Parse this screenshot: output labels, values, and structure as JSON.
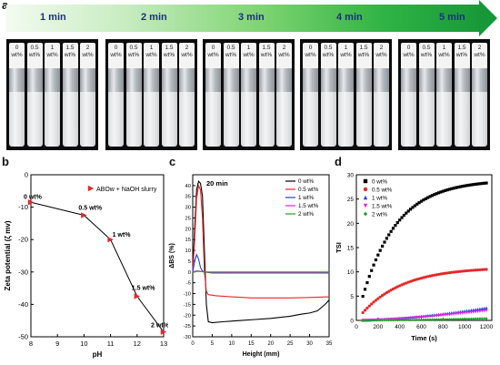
{
  "panel_labels": {
    "a": "a",
    "b": "b",
    "c": "c",
    "d": "d"
  },
  "timeline": {
    "labels": [
      "1 min",
      "2 min",
      "3 min",
      "4 min",
      "5 min"
    ]
  },
  "vial_labels": [
    [
      "0",
      "wt%"
    ],
    [
      "0.5",
      "wt%"
    ],
    [
      "1",
      "wt%"
    ],
    [
      "1.5",
      "wt%"
    ],
    [
      "2",
      "wt%"
    ]
  ],
  "chart_data": [
    {
      "type": "line",
      "panel": "b",
      "title": "",
      "xlabel": "pH",
      "ylabel": "Zeta potential (ζ mv)",
      "legend": [
        "ABOw + NaOH slurry"
      ],
      "legend_position": "top-right",
      "xlim": [
        8,
        13
      ],
      "ylim": [
        -50,
        0
      ],
      "xticks": [
        8,
        9,
        10,
        11,
        12,
        13
      ],
      "yticks": [
        0,
        -10,
        -20,
        -30,
        -40,
        -50
      ],
      "series": [
        {
          "name": "ABOw + NaOH slurry",
          "x": [
            8,
            10,
            11,
            12,
            13
          ],
          "y": [
            -8.5,
            -12.5,
            -20,
            -37.5,
            -48.5
          ]
        }
      ],
      "annotations": [
        "0 wt%",
        "0.5 wt%",
        "1 wt%",
        "1.5 wt%",
        "2 wt%"
      ],
      "color": "#e8262a"
    },
    {
      "type": "line",
      "panel": "c",
      "title": "20 min",
      "xlabel": "Height (mm)",
      "ylabel": "ΔBS (%)",
      "xlim": [
        0,
        35
      ],
      "ylim": [
        -30,
        45
      ],
      "xticks": [
        0,
        5,
        10,
        15,
        20,
        25,
        30,
        35
      ],
      "yticks": [
        40,
        35,
        30,
        25,
        20,
        15,
        10,
        5,
        0,
        -5,
        -10,
        -15,
        -20,
        -25,
        -30
      ],
      "legend_position": "top-right",
      "series": [
        {
          "name": "0 wt%",
          "color": "#000000",
          "x": [
            0,
            0.5,
            1,
            1.5,
            2,
            2.5,
            3,
            3.5,
            4,
            5,
            8,
            12,
            16,
            20,
            25,
            28,
            30,
            32,
            34,
            35
          ],
          "y": [
            0,
            20,
            38,
            42,
            41,
            35,
            10,
            -15,
            -23,
            -23.5,
            -23,
            -22.5,
            -22,
            -21.5,
            -20.5,
            -19.5,
            -19,
            -18,
            -15,
            -13
          ]
        },
        {
          "name": "0.5 wt%",
          "color": "#e8262a",
          "x": [
            0,
            0.5,
            1,
            1.5,
            2,
            2.5,
            3,
            3.5,
            4,
            6,
            10,
            15,
            20,
            25,
            30,
            35
          ],
          "y": [
            0,
            15,
            34,
            40,
            38,
            25,
            0,
            -9,
            -10.5,
            -11,
            -11.5,
            -12,
            -12,
            -12,
            -11.8,
            -11.5
          ]
        },
        {
          "name": "1 wt%",
          "color": "#2040e0",
          "x": [
            0,
            0.5,
            1,
            1.5,
            2,
            2.5,
            3,
            5,
            10,
            20,
            30,
            35
          ],
          "y": [
            0,
            5,
            8,
            6,
            2,
            0.5,
            0,
            -0.5,
            -0.5,
            -0.5,
            -0.5,
            -0.5
          ]
        },
        {
          "name": "1.5 wt%",
          "color": "#e020e0",
          "x": [
            0,
            1,
            2,
            3,
            5,
            10,
            20,
            30,
            35
          ],
          "y": [
            0,
            0.5,
            0.3,
            0,
            -0.2,
            -0.2,
            -0.2,
            -0.2,
            -0.2
          ]
        },
        {
          "name": "2 wt%",
          "color": "#22a022",
          "x": [
            0,
            1,
            2,
            3,
            5,
            10,
            20,
            30,
            35
          ],
          "y": [
            0,
            0.3,
            0.2,
            0,
            0,
            0,
            0,
            0,
            0
          ]
        }
      ]
    },
    {
      "type": "scatter",
      "panel": "d",
      "title": "",
      "xlabel": "Time (s)",
      "ylabel": "TSI",
      "xlim": [
        0,
        1250
      ],
      "ylim": [
        0,
        30
      ],
      "xticks": [
        0,
        200,
        400,
        600,
        800,
        1000,
        1200
      ],
      "yticks": [
        0,
        5,
        10,
        15,
        20,
        25,
        30
      ],
      "legend_position": "top-left",
      "series": [
        {
          "name": "0 wt%",
          "color": "#000000",
          "marker": "square",
          "final": 28.3,
          "k": 320
        },
        {
          "name": "0.5 wt%",
          "color": "#e8262a",
          "marker": "circle",
          "final": 10.5,
          "k": 380
        },
        {
          "name": "1 wt%",
          "color": "#2040e0",
          "marker": "triangle-up",
          "final": 2.6,
          "k": 0
        },
        {
          "name": "1.5 wt%",
          "color": "#e020e0",
          "marker": "triangle-down",
          "final": 2.0,
          "k": 0
        },
        {
          "name": "2 wt%",
          "color": "#22a022",
          "marker": "diamond",
          "final": 0.4,
          "k": 0
        }
      ]
    }
  ]
}
